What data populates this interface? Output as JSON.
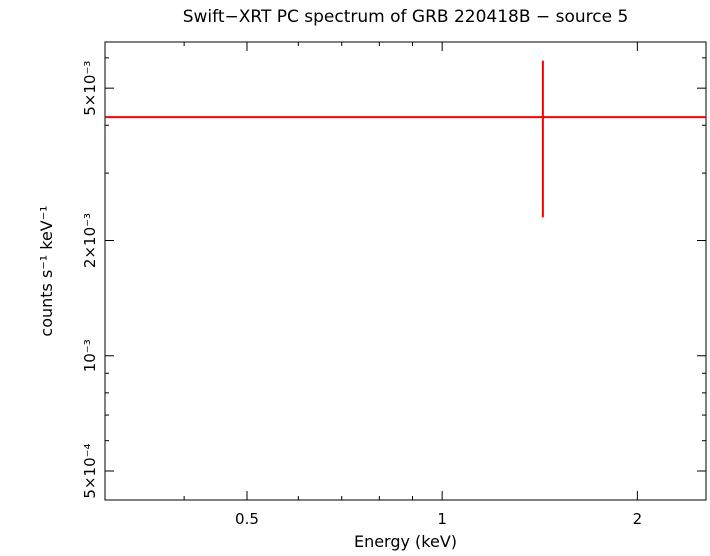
{
  "chart_data": {
    "type": "scatter",
    "title": "Swift−XRT PC spectrum of GRB 220418B − source 5",
    "xlabel": "Energy (keV)",
    "ylabel": "counts s⁻¹ keV⁻¹",
    "xscale": "log",
    "yscale": "log",
    "xlim": [
      0.302,
      2.552
    ],
    "ylim": [
      0.00042,
      0.0066
    ],
    "grid": false,
    "legend": "none",
    "frame_color": "#000000",
    "data_color": "#ff0000",
    "x_ticks_major": [
      {
        "value": 0.5,
        "label": "0.5"
      },
      {
        "value": 1,
        "label": "1"
      },
      {
        "value": 2,
        "label": "2"
      }
    ],
    "x_ticks_minor": [
      0.4,
      0.6,
      0.7,
      0.8,
      0.9
    ],
    "y_ticks_major": [
      {
        "value": 0.0005,
        "label": "5×10⁻⁴"
      },
      {
        "value": 0.001,
        "label": "10⁻³"
      },
      {
        "value": 0.002,
        "label": "2×10⁻³"
      },
      {
        "value": 0.005,
        "label": "5×10⁻³"
      }
    ],
    "y_ticks_minor": [
      0.0006,
      0.0007,
      0.0008,
      0.0009,
      0.003,
      0.004,
      0.006
    ],
    "series": [
      {
        "name": "PC spectrum bin",
        "points": [
          {
            "x": 1.43,
            "x_lo": 0.302,
            "x_hi": 2.552,
            "y": 0.0042,
            "y_lo": 0.0023,
            "y_hi": 0.0059
          }
        ]
      }
    ]
  }
}
